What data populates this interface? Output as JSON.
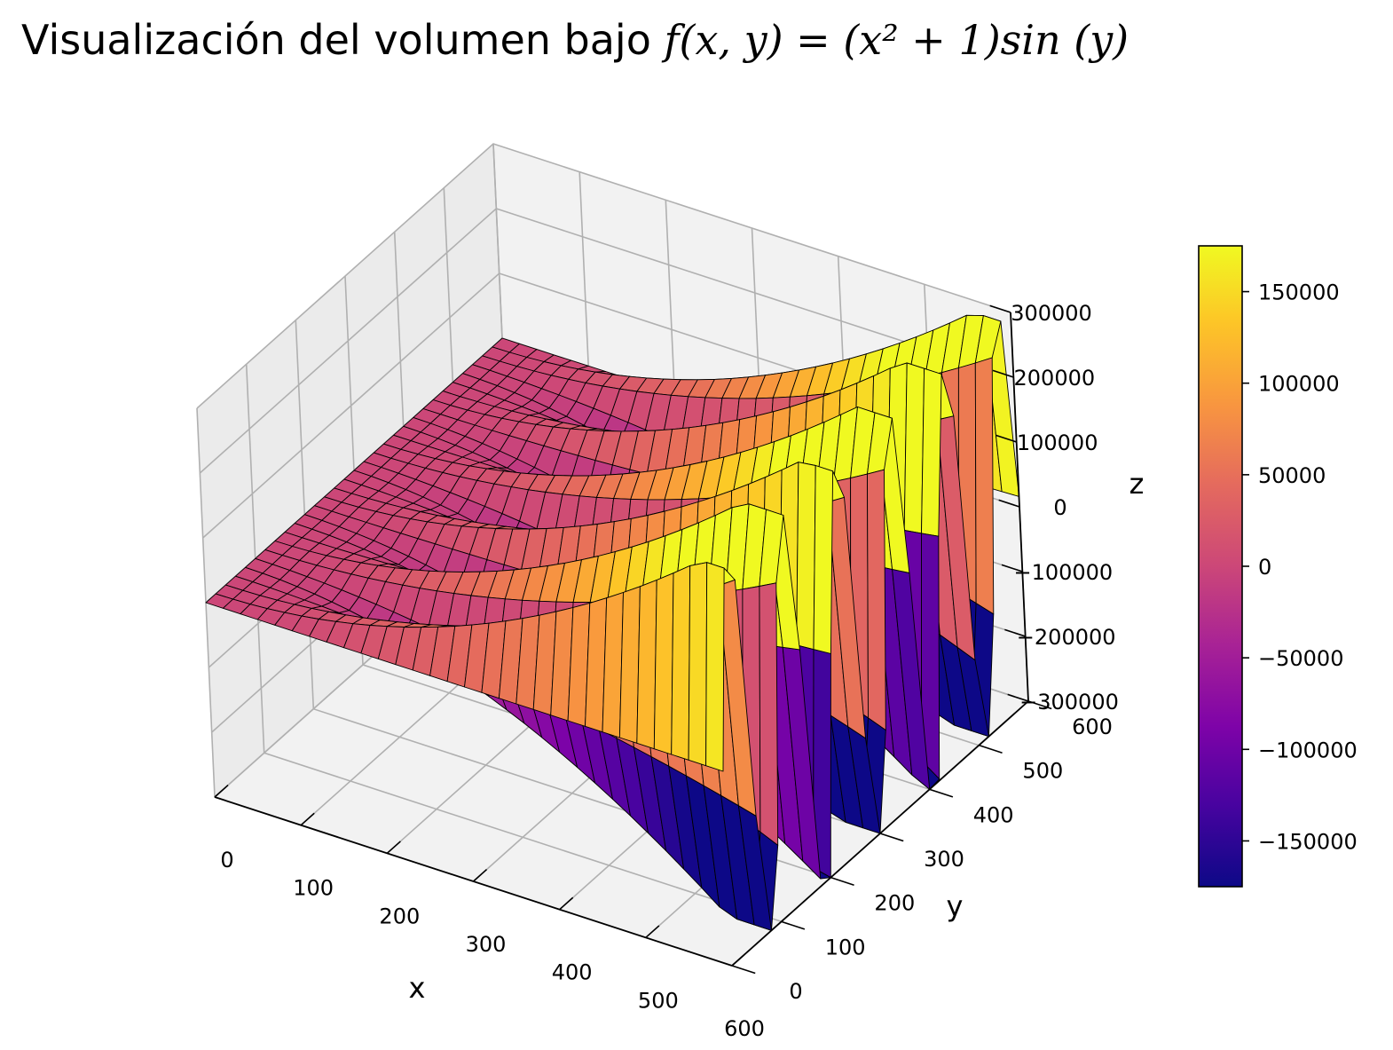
{
  "title_text": "Visualización del volumen bajo ",
  "title_math": "f(x, y) = (x² + 1)sin (y)",
  "chart_data": {
    "type": "surface3d",
    "title": "Visualización del volumen bajo f(x,y) = (x^2 + 1) sin(y)",
    "function": "f(x,y) = (x^2 + 1) sin(y)",
    "xlabel": "x",
    "ylabel": "y",
    "zlabel": "z",
    "xlim": [
      0,
      600
    ],
    "ylim": [
      0,
      600
    ],
    "zlim": [
      -300000,
      300000
    ],
    "x_ticks": [
      "0",
      "100",
      "200",
      "300",
      "400",
      "500",
      "600"
    ],
    "y_ticks": [
      "0",
      "100",
      "200",
      "300",
      "400",
      "500",
      "600"
    ],
    "z_ticks": [
      "−300000",
      "−200000",
      "−100000",
      "0",
      "100000",
      "200000",
      "300000"
    ],
    "colormap": "plasma",
    "colorbar": {
      "range": [
        -175000,
        175000
      ],
      "ticks": [
        -150000,
        -100000,
        -50000,
        0,
        50000,
        100000,
        150000
      ],
      "tick_labels": [
        "−150000",
        "−100000",
        "−50000",
        "0",
        "50000",
        "100000",
        "150000"
      ]
    },
    "grid": true
  },
  "colors": {
    "pane": "#f2f2f2",
    "grid": "#b0b0b0",
    "edge": "#000000"
  }
}
